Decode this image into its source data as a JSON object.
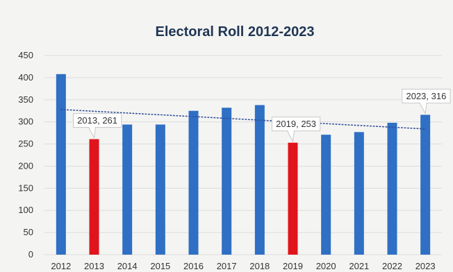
{
  "chart_data": {
    "type": "bar",
    "title": "Electoral Roll 2012-2023",
    "xlabel": "",
    "ylabel": "",
    "ylim": [
      0,
      450
    ],
    "yticks": [
      0,
      50,
      100,
      150,
      200,
      250,
      300,
      350,
      400,
      450
    ],
    "categories": [
      "2012",
      "2013",
      "2014",
      "2015",
      "2016",
      "2017",
      "2018",
      "2019",
      "2020",
      "2021",
      "2022",
      "2023"
    ],
    "values": [
      408,
      261,
      294,
      294,
      325,
      332,
      338,
      253,
      271,
      277,
      298,
      316
    ],
    "bar_colors": [
      "#2f6fc4",
      "#e0141b",
      "#2f6fc4",
      "#2f6fc4",
      "#2f6fc4",
      "#2f6fc4",
      "#2f6fc4",
      "#e0141b",
      "#2f6fc4",
      "#2f6fc4",
      "#2f6fc4",
      "#2f6fc4"
    ],
    "trendline": {
      "style": "dotted",
      "color": "#2f4f9a",
      "start": 328,
      "end": 284
    },
    "grid": true,
    "annotations": [
      {
        "category": "2013",
        "label": "2013, 261"
      },
      {
        "category": "2019",
        "label": "2019, 253"
      },
      {
        "category": "2023",
        "label": "2023, 316"
      }
    ]
  }
}
